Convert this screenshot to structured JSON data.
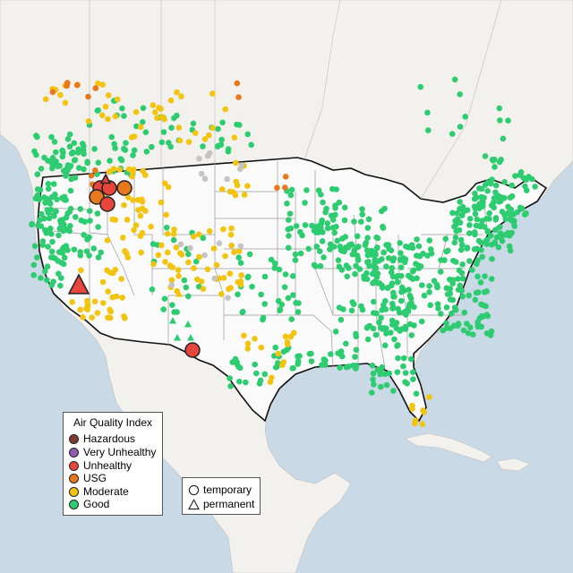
{
  "map": {
    "title": "",
    "colors": {
      "ocean": "#c9d9e6",
      "land": "#f3f1ee",
      "us_land": "#fafafa",
      "borders": "#9a9a9a",
      "us_outline": "#111111"
    }
  },
  "aqi_legend": {
    "title": "Air Quality Index",
    "items": [
      {
        "label": "Hazardous",
        "color": "#7e3b2f"
      },
      {
        "label": "Very Unhealthy",
        "color": "#8e5bb0"
      },
      {
        "label": "Unhealthy",
        "color": "#e8453c"
      },
      {
        "label": "USG",
        "color": "#e8781e"
      },
      {
        "label": "Moderate",
        "color": "#f2c40f"
      },
      {
        "label": "Good",
        "color": "#2ecc71"
      }
    ]
  },
  "shape_legend": {
    "items": [
      {
        "label": "temporary",
        "shape": "circle-icon"
      },
      {
        "label": "permanent",
        "shape": "triangle-icon"
      }
    ]
  }
}
